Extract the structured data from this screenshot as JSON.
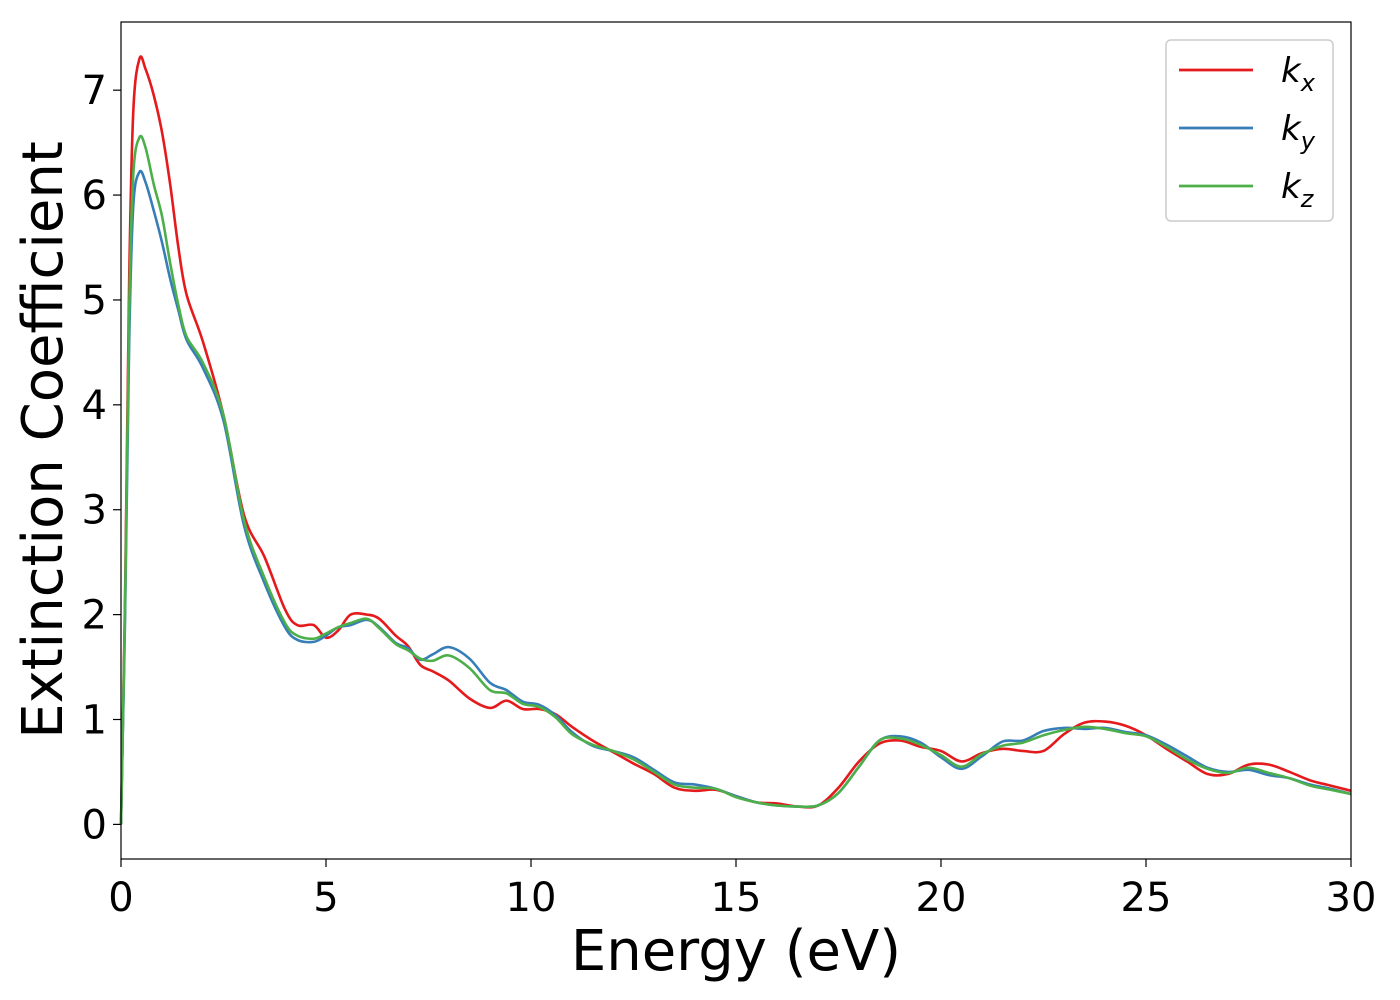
{
  "chart_data": {
    "type": "line",
    "xlabel": "Energy (eV)",
    "ylabel": "Extinction Coefficient",
    "xlim": [
      0,
      30
    ],
    "ylim": [
      -0.33,
      7.65
    ],
    "xticks": [
      0,
      5,
      10,
      15,
      20,
      25,
      30
    ],
    "yticks": [
      0,
      1,
      2,
      3,
      4,
      5,
      6,
      7
    ],
    "grid": false,
    "legend_position": "top-right",
    "series": [
      {
        "name": "k_x",
        "legend_main": "k",
        "legend_sub": "x",
        "color": "#e41a1c",
        "points": [
          [
            0,
            0
          ],
          [
            0.1,
            2.2
          ],
          [
            0.2,
            5.2
          ],
          [
            0.3,
            6.8
          ],
          [
            0.45,
            7.3
          ],
          [
            0.6,
            7.2
          ],
          [
            0.8,
            6.95
          ],
          [
            1.0,
            6.6
          ],
          [
            1.2,
            6.1
          ],
          [
            1.4,
            5.5
          ],
          [
            1.6,
            5.05
          ],
          [
            2.0,
            4.6
          ],
          [
            2.5,
            3.9
          ],
          [
            3.0,
            2.95
          ],
          [
            3.5,
            2.55
          ],
          [
            4.0,
            2.05
          ],
          [
            4.3,
            1.9
          ],
          [
            4.7,
            1.9
          ],
          [
            5.0,
            1.78
          ],
          [
            5.3,
            1.85
          ],
          [
            5.6,
            2.0
          ],
          [
            6.0,
            2.0
          ],
          [
            6.3,
            1.96
          ],
          [
            6.7,
            1.8
          ],
          [
            7.0,
            1.7
          ],
          [
            7.3,
            1.52
          ],
          [
            7.6,
            1.46
          ],
          [
            8.0,
            1.37
          ],
          [
            8.5,
            1.2
          ],
          [
            9.0,
            1.11
          ],
          [
            9.4,
            1.18
          ],
          [
            9.8,
            1.1
          ],
          [
            10.2,
            1.1
          ],
          [
            10.6,
            1.05
          ],
          [
            11.0,
            0.93
          ],
          [
            11.5,
            0.8
          ],
          [
            12.0,
            0.69
          ],
          [
            12.5,
            0.58
          ],
          [
            13.0,
            0.48
          ],
          [
            13.5,
            0.35
          ],
          [
            14.0,
            0.32
          ],
          [
            14.5,
            0.33
          ],
          [
            15.0,
            0.27
          ],
          [
            15.5,
            0.21
          ],
          [
            16.0,
            0.2
          ],
          [
            16.5,
            0.17
          ],
          [
            17.0,
            0.18
          ],
          [
            17.5,
            0.35
          ],
          [
            18.0,
            0.6
          ],
          [
            18.5,
            0.77
          ],
          [
            19.0,
            0.8
          ],
          [
            19.5,
            0.74
          ],
          [
            20.0,
            0.7
          ],
          [
            20.5,
            0.6
          ],
          [
            21.0,
            0.68
          ],
          [
            21.5,
            0.72
          ],
          [
            22.0,
            0.7
          ],
          [
            22.5,
            0.7
          ],
          [
            23.0,
            0.86
          ],
          [
            23.5,
            0.97
          ],
          [
            24.0,
            0.98
          ],
          [
            24.5,
            0.94
          ],
          [
            25.0,
            0.85
          ],
          [
            25.5,
            0.72
          ],
          [
            26.0,
            0.6
          ],
          [
            26.5,
            0.48
          ],
          [
            27.0,
            0.48
          ],
          [
            27.5,
            0.57
          ],
          [
            28.0,
            0.57
          ],
          [
            28.5,
            0.5
          ],
          [
            29.0,
            0.42
          ],
          [
            29.5,
            0.37
          ],
          [
            30.0,
            0.32
          ]
        ]
      },
      {
        "name": "k_y",
        "legend_main": "k",
        "legend_sub": "y",
        "color": "#377eb8",
        "points": [
          [
            0,
            0
          ],
          [
            0.1,
            2.0
          ],
          [
            0.2,
            4.6
          ],
          [
            0.3,
            5.9
          ],
          [
            0.45,
            6.22
          ],
          [
            0.6,
            6.12
          ],
          [
            0.8,
            5.85
          ],
          [
            1.0,
            5.55
          ],
          [
            1.2,
            5.2
          ],
          [
            1.4,
            4.9
          ],
          [
            1.6,
            4.62
          ],
          [
            2.0,
            4.35
          ],
          [
            2.5,
            3.85
          ],
          [
            3.0,
            2.85
          ],
          [
            3.5,
            2.3
          ],
          [
            4.0,
            1.88
          ],
          [
            4.3,
            1.76
          ],
          [
            4.7,
            1.74
          ],
          [
            5.0,
            1.8
          ],
          [
            5.3,
            1.88
          ],
          [
            5.6,
            1.9
          ],
          [
            6.0,
            1.95
          ],
          [
            6.3,
            1.88
          ],
          [
            6.7,
            1.73
          ],
          [
            7.0,
            1.68
          ],
          [
            7.3,
            1.57
          ],
          [
            7.6,
            1.62
          ],
          [
            8.0,
            1.69
          ],
          [
            8.5,
            1.58
          ],
          [
            9.0,
            1.35
          ],
          [
            9.4,
            1.28
          ],
          [
            9.8,
            1.17
          ],
          [
            10.2,
            1.14
          ],
          [
            10.6,
            1.04
          ],
          [
            11.0,
            0.88
          ],
          [
            11.5,
            0.75
          ],
          [
            12.0,
            0.7
          ],
          [
            12.5,
            0.64
          ],
          [
            13.0,
            0.52
          ],
          [
            13.5,
            0.4
          ],
          [
            14.0,
            0.38
          ],
          [
            14.5,
            0.34
          ],
          [
            15.0,
            0.27
          ],
          [
            15.5,
            0.21
          ],
          [
            16.0,
            0.18
          ],
          [
            16.5,
            0.17
          ],
          [
            17.0,
            0.18
          ],
          [
            17.5,
            0.3
          ],
          [
            18.0,
            0.55
          ],
          [
            18.5,
            0.8
          ],
          [
            19.0,
            0.84
          ],
          [
            19.5,
            0.78
          ],
          [
            20.0,
            0.64
          ],
          [
            20.5,
            0.53
          ],
          [
            21.0,
            0.65
          ],
          [
            21.5,
            0.79
          ],
          [
            22.0,
            0.8
          ],
          [
            22.5,
            0.89
          ],
          [
            23.0,
            0.92
          ],
          [
            23.5,
            0.91
          ],
          [
            24.0,
            0.92
          ],
          [
            24.5,
            0.88
          ],
          [
            25.0,
            0.85
          ],
          [
            25.5,
            0.76
          ],
          [
            26.0,
            0.65
          ],
          [
            26.5,
            0.54
          ],
          [
            27.0,
            0.5
          ],
          [
            27.5,
            0.52
          ],
          [
            28.0,
            0.47
          ],
          [
            28.5,
            0.44
          ],
          [
            29.0,
            0.38
          ],
          [
            29.5,
            0.34
          ],
          [
            30.0,
            0.29
          ]
        ]
      },
      {
        "name": "k_z",
        "legend_main": "k",
        "legend_sub": "z",
        "color": "#4daf4a",
        "points": [
          [
            0,
            0
          ],
          [
            0.1,
            2.1
          ],
          [
            0.2,
            4.9
          ],
          [
            0.3,
            6.2
          ],
          [
            0.45,
            6.55
          ],
          [
            0.6,
            6.45
          ],
          [
            0.8,
            6.1
          ],
          [
            1.0,
            5.8
          ],
          [
            1.2,
            5.35
          ],
          [
            1.4,
            4.95
          ],
          [
            1.6,
            4.65
          ],
          [
            2.0,
            4.4
          ],
          [
            2.5,
            3.9
          ],
          [
            3.0,
            2.9
          ],
          [
            3.5,
            2.35
          ],
          [
            4.0,
            1.92
          ],
          [
            4.3,
            1.8
          ],
          [
            4.7,
            1.77
          ],
          [
            5.0,
            1.82
          ],
          [
            5.3,
            1.88
          ],
          [
            5.6,
            1.92
          ],
          [
            6.0,
            1.96
          ],
          [
            6.3,
            1.87
          ],
          [
            6.7,
            1.72
          ],
          [
            7.0,
            1.66
          ],
          [
            7.3,
            1.58
          ],
          [
            7.6,
            1.56
          ],
          [
            8.0,
            1.61
          ],
          [
            8.5,
            1.49
          ],
          [
            9.0,
            1.28
          ],
          [
            9.4,
            1.25
          ],
          [
            9.8,
            1.15
          ],
          [
            10.2,
            1.12
          ],
          [
            10.6,
            1.02
          ],
          [
            11.0,
            0.86
          ],
          [
            11.5,
            0.76
          ],
          [
            12.0,
            0.7
          ],
          [
            12.5,
            0.62
          ],
          [
            13.0,
            0.5
          ],
          [
            13.5,
            0.38
          ],
          [
            14.0,
            0.35
          ],
          [
            14.5,
            0.34
          ],
          [
            15.0,
            0.26
          ],
          [
            15.5,
            0.21
          ],
          [
            16.0,
            0.18
          ],
          [
            16.5,
            0.17
          ],
          [
            17.0,
            0.18
          ],
          [
            17.5,
            0.3
          ],
          [
            18.0,
            0.55
          ],
          [
            18.5,
            0.8
          ],
          [
            19.0,
            0.82
          ],
          [
            19.5,
            0.76
          ],
          [
            20.0,
            0.66
          ],
          [
            20.5,
            0.55
          ],
          [
            21.0,
            0.67
          ],
          [
            21.5,
            0.75
          ],
          [
            22.0,
            0.78
          ],
          [
            22.5,
            0.85
          ],
          [
            23.0,
            0.9
          ],
          [
            23.5,
            0.93
          ],
          [
            24.0,
            0.91
          ],
          [
            24.5,
            0.87
          ],
          [
            25.0,
            0.84
          ],
          [
            25.5,
            0.74
          ],
          [
            26.0,
            0.62
          ],
          [
            26.5,
            0.53
          ],
          [
            27.0,
            0.49
          ],
          [
            27.5,
            0.54
          ],
          [
            28.0,
            0.49
          ],
          [
            28.5,
            0.44
          ],
          [
            29.0,
            0.37
          ],
          [
            29.5,
            0.33
          ],
          [
            30.0,
            0.29
          ]
        ]
      }
    ]
  }
}
